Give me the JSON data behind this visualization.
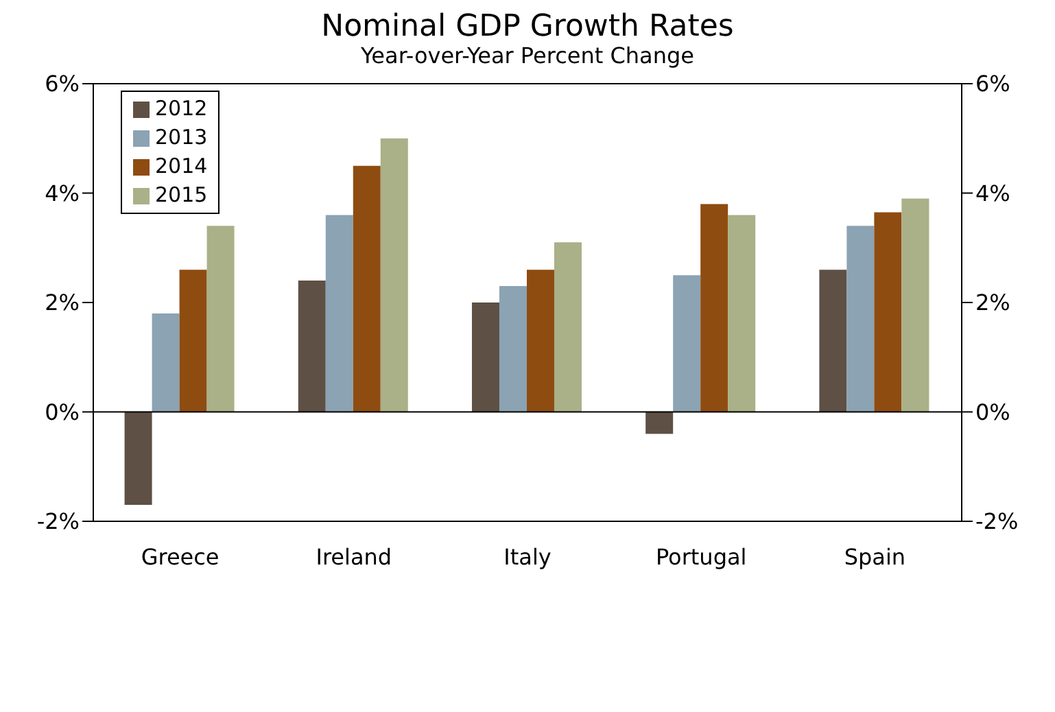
{
  "chart_data": {
    "type": "bar",
    "title": "Nominal GDP Growth Rates",
    "subtitle": "Year-over-Year Percent Change",
    "categories": [
      "Greece",
      "Ireland",
      "Italy",
      "Portugal",
      "Spain"
    ],
    "series": [
      {
        "name": "2012",
        "color": "#5e5045",
        "values": [
          -1.7,
          2.4,
          2.0,
          -0.4,
          2.6
        ]
      },
      {
        "name": "2013",
        "color": "#8ba3b3",
        "values": [
          1.8,
          3.6,
          2.3,
          2.5,
          3.4
        ]
      },
      {
        "name": "2014",
        "color": "#8e4c11",
        "values": [
          2.6,
          4.5,
          2.6,
          3.8,
          3.65
        ]
      },
      {
        "name": "2015",
        "color": "#aab087",
        "values": [
          3.4,
          5.0,
          3.1,
          3.6,
          3.9
        ]
      }
    ],
    "ylim": [
      -2,
      6
    ],
    "yticks": [
      {
        "value": -2,
        "label": "-2%"
      },
      {
        "value": 0,
        "label": "0%"
      },
      {
        "value": 2,
        "label": "2%"
      },
      {
        "value": 4,
        "label": "4%"
      },
      {
        "value": 6,
        "label": "6%"
      }
    ],
    "y2lim": [
      -2,
      6
    ],
    "y2ticks": [
      {
        "value": -2,
        "label": "-2%"
      },
      {
        "value": 0,
        "label": "0%"
      },
      {
        "value": 2,
        "label": "2%"
      },
      {
        "value": 4,
        "label": "4%"
      },
      {
        "value": 6,
        "label": "6%"
      }
    ],
    "legend": "top left"
  }
}
